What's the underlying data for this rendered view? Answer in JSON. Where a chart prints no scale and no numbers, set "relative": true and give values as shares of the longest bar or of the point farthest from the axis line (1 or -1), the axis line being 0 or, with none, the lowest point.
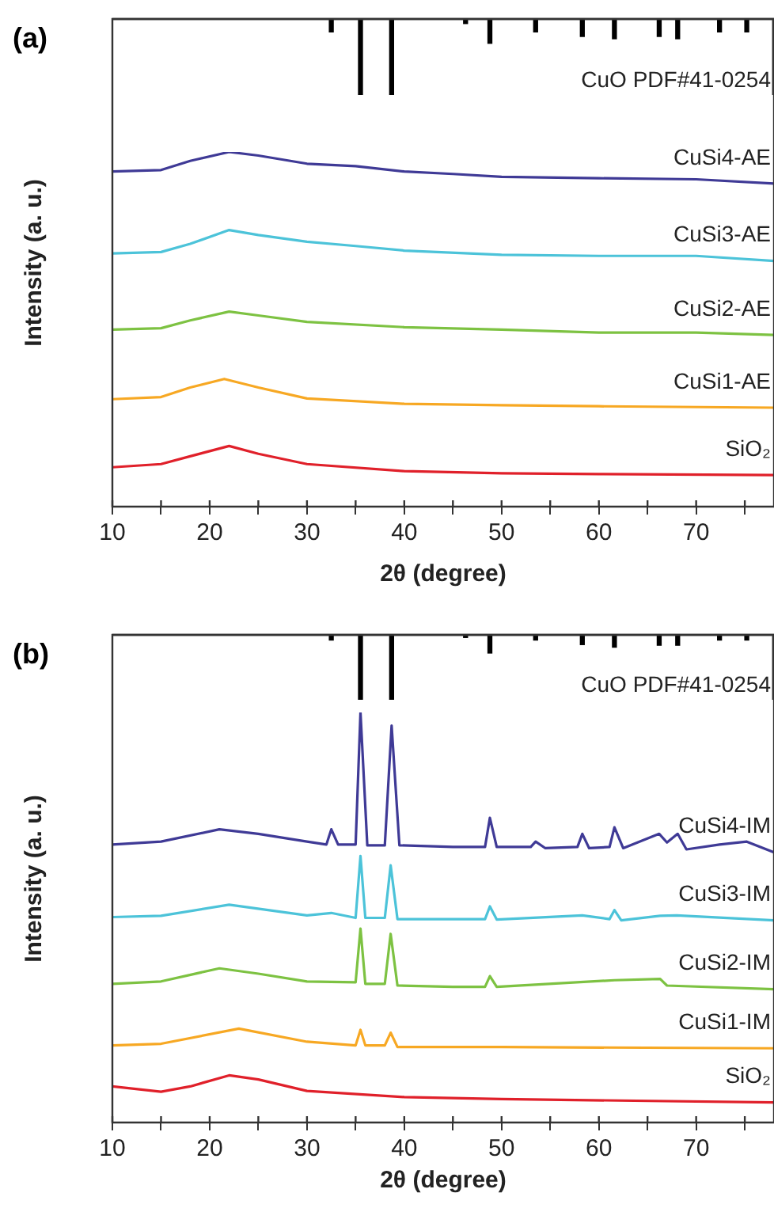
{
  "chart_data": [
    {
      "type": "bar",
      "title": "(a)",
      "relative": true,
      "tick_labels": false,
      "xlim": [
        10,
        78
      ],
      "series": [
        {
          "name": "CuO PDF#41-0254",
          "color": "#000000",
          "x": [
            32.5,
            35.5,
            38.7,
            46.3,
            48.8,
            53.5,
            58.3,
            61.6,
            66.2,
            68.1,
            72.4,
            75.2
          ],
          "values": [
            -0.17,
            -1,
            -1,
            -0.06,
            -0.32,
            -0.17,
            -0.23,
            -0.26,
            -0.23,
            -0.26,
            -0.17,
            -0.17
          ]
        }
      ]
    },
    {
      "type": "line",
      "xlabel": "2θ (degree)",
      "ylabel": "Intensity (a. u.)",
      "relative": true,
      "xlim": [
        10,
        78
      ],
      "xticks": [
        10,
        {
          "value": 15,
          "label": null
        },
        20,
        {
          "value": 25,
          "label": null
        },
        30,
        {
          "value": 35,
          "label": null
        },
        40,
        {
          "value": 45,
          "label": null
        },
        50,
        {
          "value": 55,
          "label": null
        },
        60,
        {
          "value": 65,
          "label": null
        },
        70,
        {
          "value": 75,
          "label": null
        }
      ],
      "series": [
        {
          "name": "CuSi4-AE",
          "color": "#3f3a96",
          "x": [
            10,
            15,
            18,
            22,
            25,
            30,
            35,
            40,
            45,
            50,
            60,
            70,
            78
          ],
          "values": [
            0.945,
            0.949,
            0.975,
            1,
            0.99,
            0.967,
            0.96,
            0.945,
            0.938,
            0.93,
            0.926,
            0.923,
            0.911
          ]
        },
        {
          "name": "CuSi3-AE",
          "color": "#4cc3d9",
          "x": [
            10,
            15,
            18,
            22,
            25,
            30,
            35,
            40,
            50,
            60,
            70,
            78
          ],
          "values": [
            0.714,
            0.718,
            0.741,
            0.78,
            0.766,
            0.747,
            0.735,
            0.722,
            0.71,
            0.707,
            0.707,
            0.693
          ]
        },
        {
          "name": "CuSi2-AE",
          "color": "#7dc242",
          "x": [
            10,
            15,
            18,
            22,
            25,
            30,
            40,
            50,
            60,
            70,
            78
          ],
          "values": [
            0.499,
            0.503,
            0.525,
            0.55,
            0.539,
            0.521,
            0.506,
            0.499,
            0.491,
            0.491,
            0.484
          ]
        },
        {
          "name": "CuSi1-AE",
          "color": "#f7a823",
          "x": [
            10,
            15,
            18,
            21.5,
            25,
            30,
            40,
            50,
            60,
            78
          ],
          "values": [
            0.303,
            0.309,
            0.336,
            0.36,
            0.336,
            0.305,
            0.29,
            0.286,
            0.283,
            0.279
          ]
        },
        {
          "name": "SiO₂",
          "color": "#e0202a",
          "x": [
            10,
            15,
            18,
            22,
            25,
            30,
            40,
            50,
            60,
            78
          ],
          "values": [
            0.111,
            0.12,
            0.142,
            0.171,
            0.149,
            0.12,
            0.1,
            0.094,
            0.092,
            0.089
          ]
        }
      ]
    },
    {
      "type": "bar",
      "title": "(b)",
      "relative": true,
      "tick_labels": false,
      "xlim": [
        10,
        78
      ],
      "series": [
        {
          "name": "CuO PDF#41-0254",
          "color": "#000000",
          "x": [
            32.5,
            35.5,
            38.7,
            46.3,
            48.8,
            53.5,
            58.3,
            61.6,
            66.2,
            68.1,
            72.4,
            75.2
          ],
          "values": [
            -0.08,
            -1,
            -1,
            -0.04,
            -0.28,
            -0.08,
            -0.15,
            -0.19,
            -0.16,
            -0.16,
            -0.08,
            -0.08
          ]
        }
      ]
    },
    {
      "type": "line",
      "xlabel": "2θ (degree)",
      "ylabel": "Intensity (a. u.)",
      "relative": true,
      "xlim": [
        10,
        78
      ],
      "xticks": [
        10,
        {
          "value": 15,
          "label": null
        },
        20,
        {
          "value": 25,
          "label": null
        },
        30,
        {
          "value": 35,
          "label": null
        },
        40,
        {
          "value": 45,
          "label": null
        },
        50,
        {
          "value": 55,
          "label": null
        },
        60,
        {
          "value": 65,
          "label": null
        },
        70,
        {
          "value": 75,
          "label": null
        }
      ],
      "series": [
        {
          "name": "CuSi4-IM",
          "color": "#3f3a96",
          "x": [
            10,
            15,
            21,
            25,
            30,
            32,
            32.5,
            33.2,
            35,
            35.5,
            36.2,
            38,
            38.7,
            39.5,
            45,
            48.3,
            48.8,
            49.5,
            53,
            53.5,
            54.5,
            57.8,
            58.3,
            59,
            61.1,
            61.6,
            62.5,
            66.2,
            67,
            68.1,
            69,
            72.4,
            75.2,
            78
          ],
          "values": [
            0.678,
            0.685,
            0.715,
            0.704,
            0.685,
            0.678,
            0.715,
            0.678,
            0.678,
            1,
            0.676,
            0.676,
            0.968,
            0.676,
            0.672,
            0.672,
            0.743,
            0.672,
            0.672,
            0.685,
            0.669,
            0.672,
            0.704,
            0.669,
            0.672,
            0.72,
            0.669,
            0.704,
            0.683,
            0.704,
            0.666,
            0.678,
            0.685,
            0.659
          ]
        },
        {
          "name": "CuSi3-IM",
          "color": "#4cc3d9",
          "x": [
            10,
            15,
            22,
            30,
            32.5,
            35,
            35.5,
            36,
            38,
            38.6,
            39.3,
            45,
            48.3,
            48.8,
            49.5,
            58.3,
            61.1,
            61.6,
            62.3,
            66.3,
            68,
            78
          ],
          "values": [
            0.501,
            0.504,
            0.531,
            0.505,
            0.511,
            0.499,
            0.65,
            0.499,
            0.499,
            0.627,
            0.496,
            0.496,
            0.496,
            0.527,
            0.495,
            0.505,
            0.496,
            0.518,
            0.493,
            0.504,
            0.505,
            0.493
          ]
        },
        {
          "name": "CuSi2-IM",
          "color": "#7dc242",
          "x": [
            10,
            15,
            21,
            25,
            30,
            35,
            35.5,
            36,
            38,
            38.6,
            39.3,
            45,
            48.3,
            48.8,
            49.5,
            61.6,
            66.3,
            67,
            78
          ],
          "values": [
            0.338,
            0.344,
            0.376,
            0.363,
            0.344,
            0.342,
            0.473,
            0.338,
            0.338,
            0.46,
            0.334,
            0.331,
            0.331,
            0.357,
            0.331,
            0.347,
            0.35,
            0.334,
            0.325
          ]
        },
        {
          "name": "CuSi1-IM",
          "color": "#f7a823",
          "x": [
            10,
            15,
            23,
            30,
            35,
            35.5,
            36,
            38,
            38.6,
            39.3,
            50,
            78
          ],
          "values": [
            0.188,
            0.192,
            0.229,
            0.197,
            0.188,
            0.226,
            0.188,
            0.188,
            0.219,
            0.184,
            0.184,
            0.181
          ]
        },
        {
          "name": "SiO₂",
          "color": "#e0202a",
          "x": [
            10,
            15,
            18,
            22,
            25,
            30,
            40,
            50,
            78
          ],
          "values": [
            0.088,
            0.075,
            0.088,
            0.115,
            0.105,
            0.077,
            0.062,
            0.057,
            0.049
          ]
        }
      ]
    }
  ]
}
